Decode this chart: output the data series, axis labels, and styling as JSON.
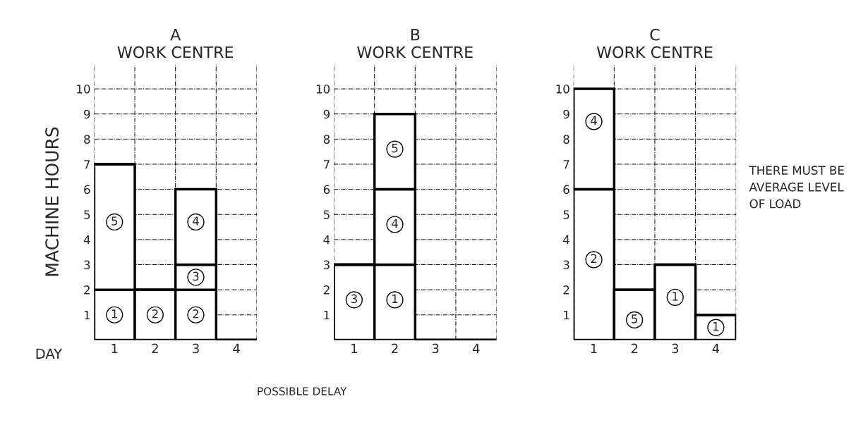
{
  "chart_data": [
    {
      "type": "bar",
      "title": "A",
      "subtitle": "WORK CENTRE",
      "ylabel": "MACHINE HOURS",
      "xlabel": "DAY",
      "categories": [
        "1",
        "2",
        "3",
        "4"
      ],
      "stacked": true,
      "ylim": [
        0,
        11
      ],
      "yticks": [
        1,
        2,
        3,
        4,
        5,
        6,
        7,
        8,
        9,
        10
      ],
      "grid": true,
      "legend": false,
      "series": [
        {
          "color": "#ffffff",
          "values": [
            2,
            2,
            2,
            null
          ]
        },
        {
          "color": "#ffffff",
          "values": [
            5,
            null,
            1,
            null
          ]
        },
        {
          "color": "#ffffff",
          "values": [
            null,
            null,
            3,
            null
          ]
        }
      ],
      "annotations": [
        {
          "text": "1",
          "x": "1",
          "y": 1
        },
        {
          "text": "5",
          "x": "1",
          "y": 4.7
        },
        {
          "text": "2",
          "x": "2",
          "y": 1
        },
        {
          "text": "2",
          "x": "3",
          "y": 1
        },
        {
          "text": "3",
          "x": "3",
          "y": 2.5
        },
        {
          "text": "4",
          "x": "3",
          "y": 4.7
        },
        "POSSIBLE DELAY"
      ]
    },
    {
      "type": "bar",
      "title": "B",
      "subtitle": "WORK CENTRE",
      "categories": [
        "1",
        "2",
        "3",
        "4"
      ],
      "stacked": true,
      "ylim": [
        0,
        11
      ],
      "yticks": [
        1,
        2,
        3,
        4,
        5,
        6,
        7,
        8,
        9,
        10
      ],
      "grid": true,
      "legend": false,
      "series": [
        {
          "color": "#ffffff",
          "values": [
            3,
            3,
            null,
            null
          ]
        },
        {
          "color": "#ffffff",
          "values": [
            null,
            3,
            null,
            null
          ]
        },
        {
          "color": "#ffffff",
          "values": [
            null,
            3,
            null,
            null
          ]
        }
      ],
      "annotations": [
        {
          "text": "3",
          "x": "1",
          "y": 1.6
        },
        {
          "text": "1",
          "x": "2",
          "y": 1.6
        },
        {
          "text": "4",
          "x": "2",
          "y": 4.6
        },
        {
          "text": "5",
          "x": "2",
          "y": 7.6
        }
      ]
    },
    {
      "type": "bar",
      "title": "C",
      "subtitle": "WORK CENTRE",
      "categories": [
        "1",
        "2",
        "3",
        "4"
      ],
      "stacked": true,
      "ylim": [
        0,
        11
      ],
      "yticks": [
        1,
        2,
        3,
        4,
        5,
        6,
        7,
        8,
        9,
        10
      ],
      "grid": true,
      "legend": false,
      "series": [
        {
          "color": "#ffffff",
          "values": [
            6,
            2,
            3,
            1
          ]
        },
        {
          "color": "#ffffff",
          "values": [
            4,
            null,
            null,
            null
          ]
        }
      ],
      "annotations": [
        {
          "text": "2",
          "x": "1",
          "y": 3.2
        },
        {
          "text": "4",
          "x": "1",
          "y": 8.7
        },
        {
          "text": "5",
          "x": "2",
          "y": 0.8
        },
        {
          "text": "1",
          "x": "3",
          "y": 1.7
        },
        {
          "text": "1",
          "x": "4",
          "y": 0.5
        },
        "THERE MUST BE AVERAGE LEVEL OF LOAD"
      ]
    }
  ]
}
